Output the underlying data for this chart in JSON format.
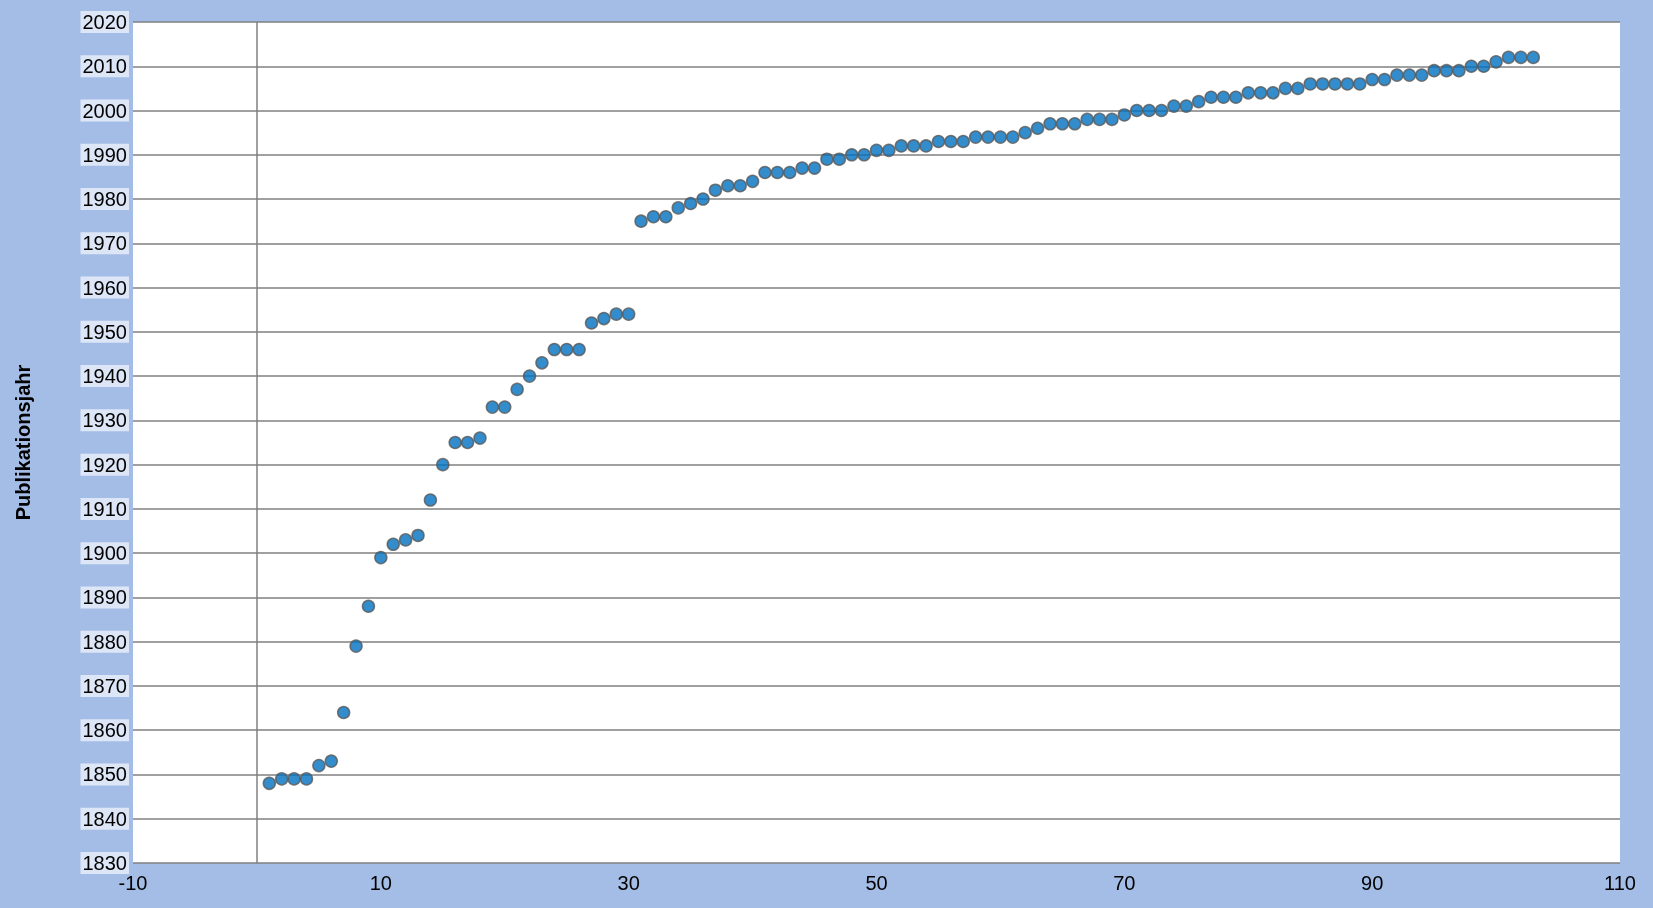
{
  "chart_data": {
    "type": "scatter",
    "ylabel": "Publikationsjahr",
    "x": [
      1,
      2,
      3,
      4,
      5,
      6,
      7,
      8,
      9,
      10,
      11,
      12,
      13,
      14,
      15,
      16,
      17,
      18,
      19,
      20,
      21,
      22,
      23,
      24,
      25,
      26,
      27,
      28,
      29,
      30,
      31,
      32,
      33,
      34,
      35,
      36,
      37,
      38,
      39,
      40,
      41,
      42,
      43,
      44,
      45,
      46,
      47,
      48,
      49,
      50,
      51,
      52,
      53,
      54,
      55,
      56,
      57,
      58,
      59,
      60,
      61,
      62,
      63,
      64,
      65,
      66,
      67,
      68,
      69,
      70,
      71,
      72,
      73,
      74,
      75,
      76,
      77,
      78,
      79,
      80,
      81,
      82,
      83,
      84,
      85,
      86,
      87,
      88,
      89,
      90,
      91,
      92,
      93,
      94,
      95,
      96,
      97,
      98,
      99,
      100,
      101,
      102,
      103
    ],
    "values": [
      1848,
      1849,
      1849,
      1849,
      1852,
      1853,
      1864,
      1879,
      1888,
      1899,
      1902,
      1903,
      1904,
      1912,
      1920,
      1925,
      1925,
      1926,
      1933,
      1933,
      1937,
      1940,
      1943,
      1946,
      1946,
      1946,
      1952,
      1953,
      1954,
      1954,
      1975,
      1976,
      1976,
      1978,
      1979,
      1980,
      1982,
      1983,
      1983,
      1984,
      1986,
      1986,
      1986,
      1987,
      1987,
      1989,
      1989,
      1990,
      1990,
      1991,
      1991,
      1992,
      1992,
      1992,
      1993,
      1993,
      1993,
      1994,
      1994,
      1994,
      1994,
      1995,
      1996,
      1997,
      1997,
      1997,
      1998,
      1998,
      1998,
      1999,
      2000,
      2000,
      2000,
      2001,
      2001,
      2002,
      2003,
      2003,
      2003,
      2004,
      2004,
      2004,
      2005,
      2005,
      2006,
      2006,
      2006,
      2006,
      2006,
      2007,
      2007,
      2008,
      2008,
      2008,
      2009,
      2009,
      2009,
      2010,
      2010,
      2011,
      2012,
      2012,
      2012
    ],
    "color": "#0070c0",
    "marker": "circle",
    "xlim": [
      -10,
      110
    ],
    "xticks": [
      -10,
      10,
      30,
      50,
      70,
      90,
      110
    ],
    "ylim": [
      1830,
      2020
    ],
    "yticks": [
      1830,
      1840,
      1850,
      1860,
      1870,
      1880,
      1890,
      1900,
      1910,
      1920,
      1930,
      1940,
      1950,
      1960,
      1970,
      1980,
      1990,
      2000,
      2010,
      2020
    ],
    "grid": "y",
    "ref_lines": [
      {
        "axis": "x",
        "value": 0
      }
    ]
  }
}
